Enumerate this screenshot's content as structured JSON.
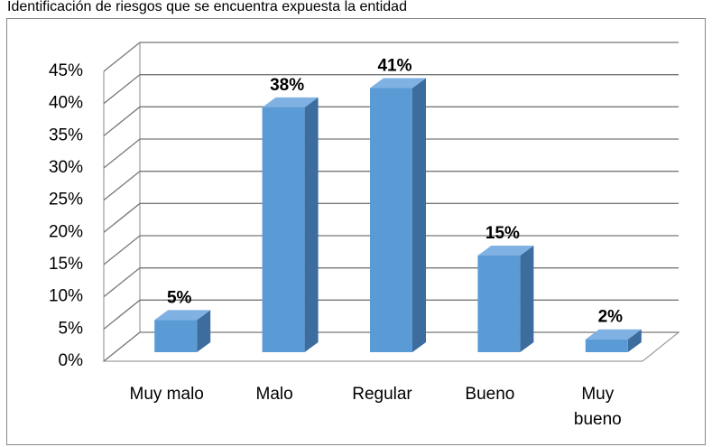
{
  "chart_data": {
    "type": "bar",
    "title": "Identificación de riesgos que se encuentra expuesta la entidad",
    "categories": [
      "Muy malo",
      "Malo",
      "Regular",
      "Bueno",
      "Muy bueno"
    ],
    "values": [
      5,
      38,
      41,
      15,
      2
    ],
    "value_labels": [
      "5%",
      "38%",
      "41%",
      "15%",
      "2%"
    ],
    "color": "#5b9bd5",
    "ylim": [
      0,
      45
    ],
    "yticks": [
      {
        "value": 0,
        "label": "0%"
      },
      {
        "value": 5,
        "label": "5%"
      },
      {
        "value": 10,
        "label": "10%"
      },
      {
        "value": 15,
        "label": "15%"
      },
      {
        "value": 20,
        "label": "20%"
      },
      {
        "value": 25,
        "label": "25%"
      },
      {
        "value": 30,
        "label": "30%"
      },
      {
        "value": 35,
        "label": "35%"
      },
      {
        "value": 40,
        "label": "40%"
      },
      {
        "value": 45,
        "label": "45%"
      }
    ],
    "grid": true
  }
}
